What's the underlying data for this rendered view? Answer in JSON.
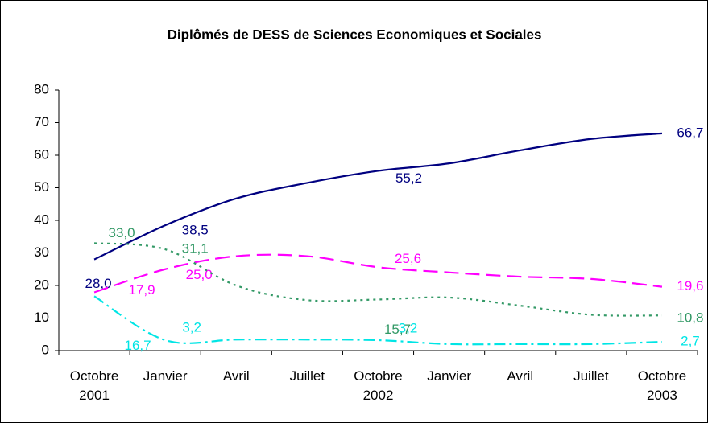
{
  "chart_data": {
    "type": "line",
    "title": "Diplômés de DESS de Sciences Economiques et Sociales",
    "categories": [
      "Octobre\n2001",
      "Janvier",
      "Avril",
      "Juillet",
      "Octobre\n2002",
      "Janvier",
      "Avril",
      "Juillet",
      "Octobre\n2003"
    ],
    "series": [
      {
        "color": "#000080",
        "values": [
          28.0,
          38.5,
          46.7,
          51.5,
          55.2,
          57.5,
          61.5,
          65.0,
          66.7
        ],
        "value_labels": [
          "28,0",
          "38,5",
          null,
          null,
          "55,2",
          null,
          null,
          null,
          "66,7"
        ]
      },
      {
        "color": "#ff00ff",
        "values": [
          17.9,
          25.0,
          29.0,
          29.0,
          25.6,
          24.0,
          22.7,
          22.0,
          19.6
        ],
        "value_labels": [
          "17,9",
          "25,0",
          null,
          null,
          "25,6",
          null,
          null,
          null,
          "19,6"
        ]
      },
      {
        "color": "#339966",
        "values": [
          33.0,
          31.1,
          20.0,
          15.5,
          15.7,
          16.3,
          13.8,
          11.0,
          10.8
        ],
        "value_labels": [
          "33,0",
          "31,1",
          null,
          null,
          "15,7",
          null,
          null,
          null,
          "10,8"
        ]
      },
      {
        "color": "#00e5e5",
        "values": [
          16.7,
          3.2,
          3.4,
          3.4,
          3.2,
          2.0,
          2.0,
          2.0,
          2.7
        ],
        "value_labels": [
          "16,7",
          "3,2",
          null,
          null,
          "3,2",
          null,
          null,
          null,
          "2,7"
        ]
      }
    ],
    "ylim": [
      0,
      80
    ],
    "yticks": [
      0,
      10,
      20,
      30,
      40,
      50,
      60,
      70,
      80
    ],
    "grid": false,
    "smooth": true
  }
}
